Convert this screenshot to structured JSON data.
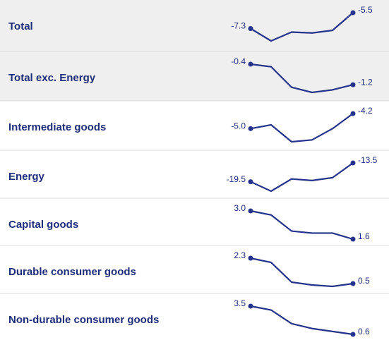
{
  "rows": [
    {
      "label": "Total",
      "values": [
        -7.3,
        -8.7,
        -7.7,
        -7.8,
        -7.5,
        -5.5
      ],
      "value_labels": [
        "-7.3",
        null,
        null,
        null,
        null,
        "-5.5"
      ]
    },
    {
      "label": "Total exc. Energy",
      "values": [
        -0.4,
        -0.5,
        -1.3,
        -1.5,
        -1.4,
        -1.2
      ],
      "value_labels": [
        "-0.4",
        null,
        null,
        null,
        null,
        "-1.2"
      ]
    },
    {
      "label": "Intermediate goods",
      "values": [
        -5.0,
        -4.8,
        -5.7,
        -5.6,
        -5.0,
        -4.2
      ],
      "value_labels": [
        "-5.0",
        null,
        null,
        null,
        null,
        "-4.2"
      ]
    },
    {
      "label": "Energy",
      "values": [
        -19.5,
        -22.5,
        -18.6,
        -19.1,
        -18.2,
        -13.5
      ],
      "value_labels": [
        "-19.5",
        null,
        null,
        null,
        null,
        "-13.5"
      ]
    },
    {
      "label": "Capital goods",
      "values": [
        3.0,
        2.8,
        2.0,
        1.9,
        1.9,
        1.6
      ],
      "value_labels": [
        "3.0",
        null,
        null,
        null,
        null,
        "1.6"
      ]
    },
    {
      "label": "Durable consumer goods",
      "values": [
        2.3,
        2.0,
        0.6,
        0.4,
        0.3,
        0.5
      ],
      "value_labels": [
        "2.3",
        null,
        null,
        null,
        null,
        "0.5"
      ]
    },
    {
      "label": "Non-durable consumer goods",
      "values": [
        3.5,
        3.1,
        1.7,
        1.2,
        0.9,
        0.6
      ],
      "value_labels": [
        "3.5",
        null,
        null,
        null,
        null,
        "0.6"
      ]
    }
  ]
}
